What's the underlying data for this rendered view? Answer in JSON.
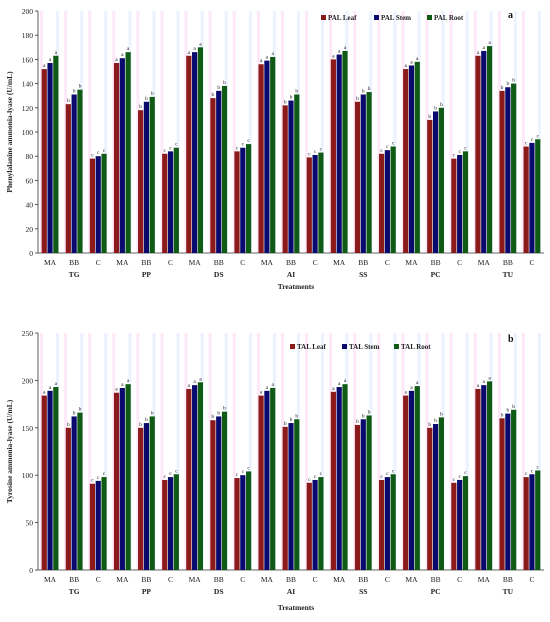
{
  "colors": {
    "leaf": "#8B1A1A",
    "stem": "#0A0A6E",
    "root": "#0F5A14",
    "axis": "#333333",
    "pink_tint": "#ffd6f2",
    "blue_tint": "#dceaff"
  },
  "chart_data": [
    {
      "panel_label": "a",
      "type": "bar",
      "xlabel": "Treatments",
      "ylabel": "Phenylalanine ammonia-lyase  (U/mL)",
      "ylim": [
        0,
        200
      ],
      "yticks": [
        "0",
        "20",
        "40",
        "60",
        "80",
        "100",
        "120",
        "140",
        "160",
        "180",
        "200"
      ],
      "groups": [
        "TG",
        "PP",
        "DS",
        "AI",
        "SS",
        "PC",
        "TU"
      ],
      "subcategories": [
        "MA",
        "BB",
        "C"
      ],
      "legend_position": "top-right",
      "series": [
        {
          "name": "PAL Leaf",
          "values": [
            [
              152,
              123,
              78
            ],
            [
              157,
              118,
              82
            ],
            [
              163,
              128,
              84
            ],
            [
              156,
              122,
              79
            ],
            [
              160,
              125,
              82
            ],
            [
              152,
              110,
              78
            ],
            [
              163,
              134,
              88
            ]
          ]
        },
        {
          "name": "PAL Stem",
          "values": [
            [
              157,
              131,
              80
            ],
            [
              161,
              125,
              84
            ],
            [
              166,
              134,
              87
            ],
            [
              159,
              126,
              81
            ],
            [
              164,
              131,
              85
            ],
            [
              155,
              117,
              81
            ],
            [
              167,
              137,
              91
            ]
          ]
        },
        {
          "name": "PAL Root",
          "values": [
            [
              163,
              135,
              82
            ],
            [
              166,
              129,
              87
            ],
            [
              170,
              138,
              90
            ],
            [
              162,
              131,
              83
            ],
            [
              167,
              133,
              88
            ],
            [
              158,
              120,
              84
            ],
            [
              171,
              140,
              94
            ]
          ]
        }
      ],
      "letters": [
        [
          "a",
          "b",
          "c"
        ],
        [
          "a",
          "b",
          "c"
        ],
        [
          "a",
          "b",
          "c"
        ],
        [
          "a",
          "b",
          "c"
        ],
        [
          "a",
          "b",
          "c"
        ],
        [
          "a",
          "b",
          "c"
        ],
        [
          "a",
          "b",
          "c"
        ]
      ]
    },
    {
      "panel_label": "b",
      "type": "bar",
      "xlabel": "Treatments",
      "ylabel": "Tyrosine ammonia-lyase  (U/mL)",
      "ylim": [
        0,
        250
      ],
      "yticks": [
        "0",
        "50",
        "100",
        "150",
        "200",
        "250"
      ],
      "groups": [
        "TG",
        "PP",
        "DS",
        "AI",
        "SS",
        "PC",
        "TU"
      ],
      "subcategories": [
        "MA",
        "BB",
        "C"
      ],
      "legend_position": "top-right",
      "series": [
        {
          "name": "TAL Leaf",
          "values": [
            [
              184,
              150,
              91
            ],
            [
              187,
              150,
              95
            ],
            [
              191,
              158,
              97
            ],
            [
              184,
              151,
              92
            ],
            [
              188,
              153,
              95
            ],
            [
              184,
              150,
              92
            ],
            [
              191,
              160,
              98
            ]
          ]
        },
        {
          "name": "TAL Stem",
          "values": [
            [
              189,
              162,
              94
            ],
            [
              192,
              155,
              98
            ],
            [
              195,
              162,
              100
            ],
            [
              189,
              155,
              95
            ],
            [
              193,
              159,
              98
            ],
            [
              189,
              154,
              95
            ],
            [
              195,
              165,
              101
            ]
          ]
        },
        {
          "name": "TAL Root",
          "values": [
            [
              193,
              166,
              98
            ],
            [
              196,
              162,
              101
            ],
            [
              198,
              167,
              104
            ],
            [
              192,
              159,
              98
            ],
            [
              196,
              163,
              101
            ],
            [
              194,
              161,
              99
            ],
            [
              199,
              169,
              105
            ]
          ]
        }
      ],
      "letters": [
        [
          "a",
          "b",
          "c"
        ],
        [
          "a",
          "b",
          "c"
        ],
        [
          "a",
          "b",
          "c"
        ],
        [
          "a",
          "b",
          "c"
        ],
        [
          "a",
          "b",
          "c"
        ],
        [
          "a",
          "b",
          "c"
        ],
        [
          "a",
          "b",
          "c"
        ]
      ]
    }
  ]
}
